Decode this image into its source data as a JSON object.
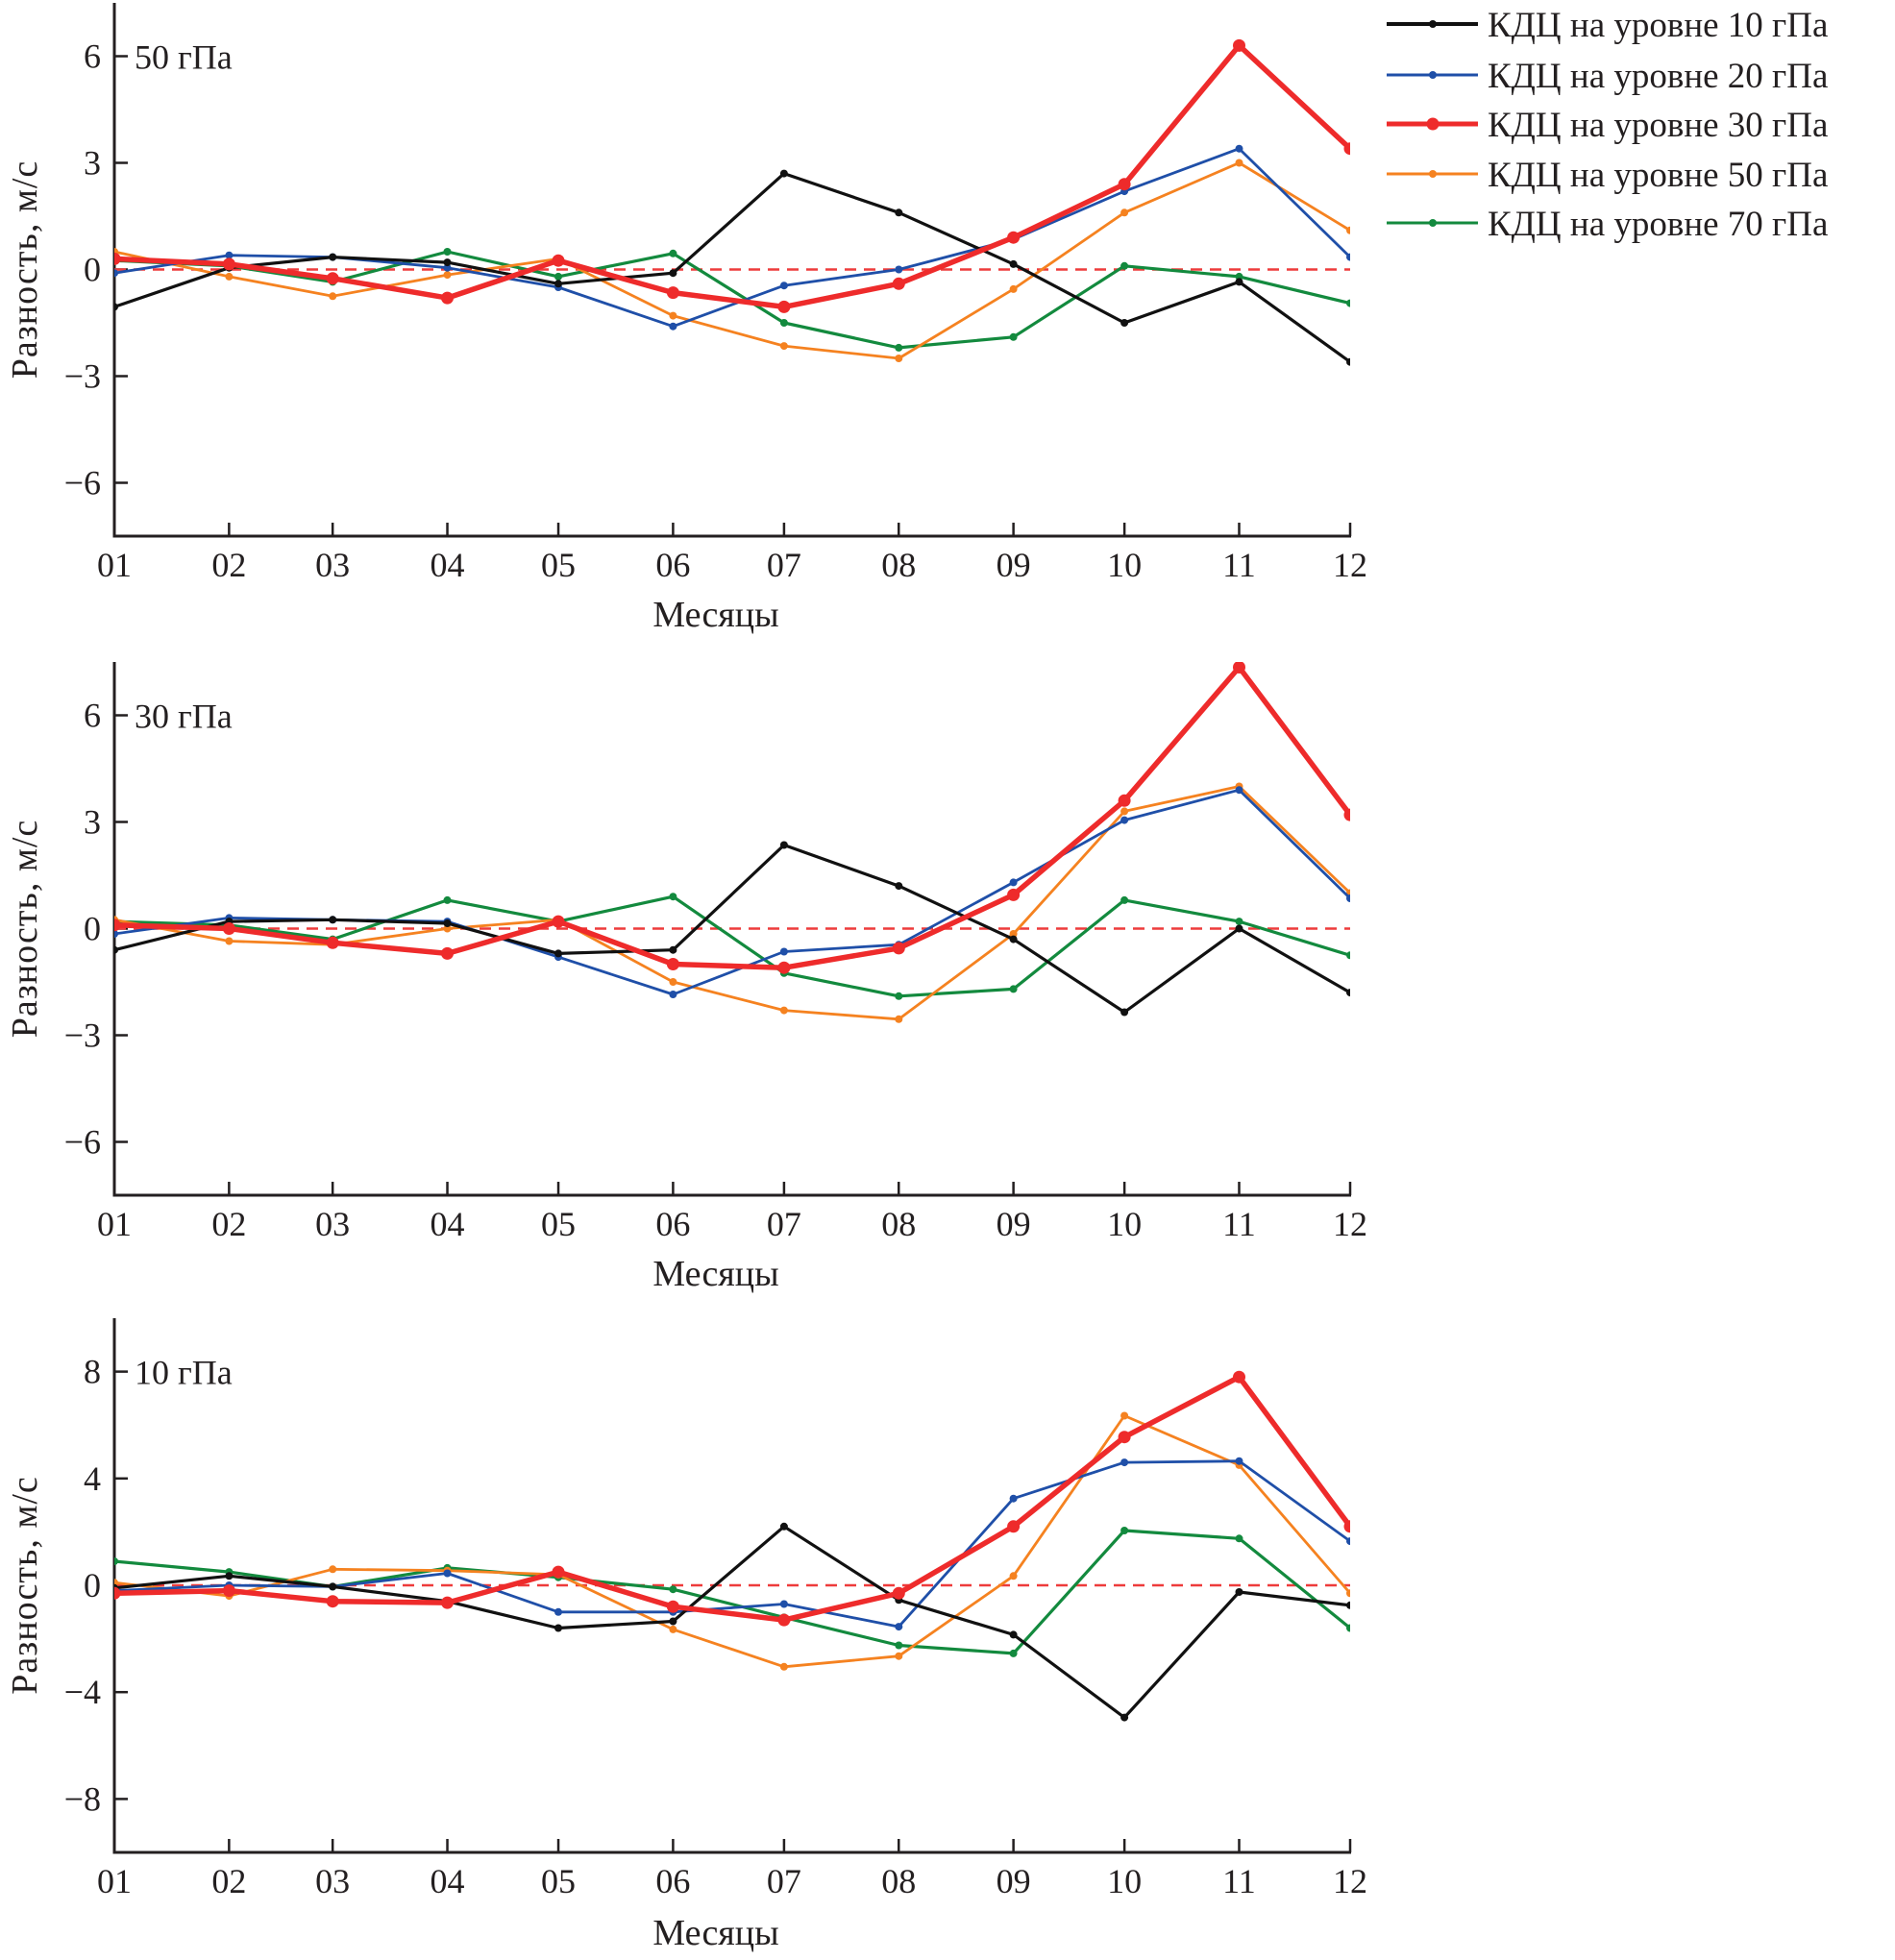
{
  "chart_data": {
    "type": "line",
    "x": [
      "01",
      "02",
      "03",
      "04",
      "05",
      "06",
      "07",
      "08",
      "09",
      "10",
      "11",
      "12"
    ],
    "x_day_offsets": [
      0,
      31,
      59,
      90,
      120,
      151,
      181,
      212,
      243,
      273,
      304,
      334
    ],
    "xlabel": "Месяцы",
    "ylabel": "Разность, м/с",
    "legend": {
      "placement": "top-right",
      "entries": [
        {
          "key": "s10",
          "label": "КДЦ на уровне 10 гПа",
          "color": "#111111"
        },
        {
          "key": "s20",
          "label": "КДЦ на уровне 20 гПа",
          "color": "#1f4fa8"
        },
        {
          "key": "s30",
          "label": "КДЦ на уровне 30 гПа",
          "color": "#ee2b2b"
        },
        {
          "key": "s50",
          "label": "КДЦ на уровне 50 гПа",
          "color": "#f58220"
        },
        {
          "key": "s70",
          "label": "КДЦ на уровне 70 гПа",
          "color": "#138a3e"
        }
      ]
    },
    "reference_line": {
      "y": 0,
      "style": "dashed",
      "color": "#ee3b3b"
    },
    "panels": [
      {
        "title": "50 гПа",
        "ylim": [
          -7.5,
          7.5
        ],
        "yticks": [
          -6,
          -3,
          0,
          3,
          6
        ],
        "ytick_labels": [
          "−6",
          "−3",
          "0",
          "3",
          "6"
        ],
        "series": [
          {
            "key": "s10",
            "name": "КДЦ на уровне 10 гПа",
            "values": [
              -1.05,
              0.05,
              0.35,
              0.2,
              -0.4,
              -0.1,
              2.7,
              1.6,
              0.15,
              -1.5,
              -0.35,
              -2.6
            ]
          },
          {
            "key": "s20",
            "name": "КДЦ на уровне 20 гПа",
            "values": [
              -0.1,
              0.4,
              0.35,
              0.05,
              -0.5,
              -1.6,
              -0.45,
              0.0,
              0.85,
              2.2,
              3.4,
              0.35
            ]
          },
          {
            "key": "s30",
            "name": "КДЦ на уровне 30 гПа",
            "values": [
              0.3,
              0.15,
              -0.25,
              -0.8,
              0.25,
              -0.65,
              -1.05,
              -0.4,
              0.9,
              2.4,
              6.3,
              3.4
            ]
          },
          {
            "key": "s50",
            "name": "КДЦ на уровне 50 гПа",
            "values": [
              0.5,
              -0.2,
              -0.75,
              -0.15,
              0.3,
              -1.3,
              -2.15,
              -2.5,
              -0.55,
              1.6,
              3.0,
              1.1
            ]
          },
          {
            "key": "s70",
            "name": "КДЦ на уровне 70 гПа",
            "values": [
              0.25,
              0.1,
              -0.35,
              0.5,
              -0.2,
              0.45,
              -1.5,
              -2.2,
              -1.9,
              0.1,
              -0.2,
              -0.95
            ]
          }
        ]
      },
      {
        "title": "30 гПа",
        "ylim": [
          -7.5,
          7.5
        ],
        "yticks": [
          -6,
          -3,
          0,
          3,
          6
        ],
        "ytick_labels": [
          "−6",
          "−3",
          "0",
          "3",
          "6"
        ],
        "series": [
          {
            "key": "s10",
            "name": "КДЦ на уровне 10 гПа",
            "values": [
              -0.6,
              0.2,
              0.25,
              0.15,
              -0.7,
              -0.6,
              2.35,
              1.2,
              -0.3,
              -2.35,
              0.0,
              -1.8
            ]
          },
          {
            "key": "s20",
            "name": "КДЦ на уровне 20 гПа",
            "values": [
              -0.15,
              0.3,
              0.25,
              0.2,
              -0.8,
              -1.85,
              -0.65,
              -0.45,
              1.3,
              3.05,
              3.9,
              0.85
            ]
          },
          {
            "key": "s30",
            "name": "КДЦ на уровне 30 гПа",
            "values": [
              0.1,
              0.0,
              -0.4,
              -0.7,
              0.2,
              -1.0,
              -1.1,
              -0.55,
              0.95,
              3.6,
              7.35,
              3.2
            ]
          },
          {
            "key": "s50",
            "name": "КДЦ на уровне 50 гПа",
            "values": [
              0.25,
              -0.35,
              -0.45,
              0.0,
              0.25,
              -1.5,
              -2.3,
              -2.55,
              -0.15,
              3.3,
              4.0,
              1.0
            ]
          },
          {
            "key": "s70",
            "name": "КДЦ на уровне 70 гПа",
            "values": [
              0.2,
              0.1,
              -0.3,
              0.8,
              0.2,
              0.9,
              -1.25,
              -1.9,
              -1.7,
              0.8,
              0.2,
              -0.75
            ]
          }
        ]
      },
      {
        "title": "10 гПа",
        "ylim": [
          -10,
          10
        ],
        "yticks": [
          -8,
          -4,
          0,
          4,
          8
        ],
        "ytick_labels": [
          "−8",
          "−4",
          "0",
          "4",
          "8"
        ],
        "series": [
          {
            "key": "s10",
            "name": "КДЦ на уровне 10 гПа",
            "values": [
              -0.1,
              0.35,
              -0.05,
              -0.6,
              -1.6,
              -1.35,
              2.2,
              -0.55,
              -1.85,
              -4.95,
              -0.25,
              -0.75
            ]
          },
          {
            "key": "s20",
            "name": "КДЦ на уровне 20 гПа",
            "values": [
              -0.2,
              0.0,
              -0.05,
              0.45,
              -1.0,
              -1.0,
              -0.7,
              -1.55,
              3.25,
              4.6,
              4.65,
              1.65
            ]
          },
          {
            "key": "s30",
            "name": "КДЦ на уровне 30 гПа",
            "values": [
              -0.3,
              -0.2,
              -0.6,
              -0.65,
              0.5,
              -0.8,
              -1.3,
              -0.3,
              2.2,
              5.55,
              7.8,
              2.2
            ]
          },
          {
            "key": "s50",
            "name": "КДЦ на уровне 50 гПа",
            "values": [
              0.1,
              -0.4,
              0.6,
              0.55,
              0.4,
              -1.65,
              -3.05,
              -2.65,
              0.35,
              6.35,
              4.5,
              -0.3
            ]
          },
          {
            "key": "s70",
            "name": "КДЦ на уровне 70 гПа",
            "values": [
              0.9,
              0.5,
              -0.05,
              0.65,
              0.3,
              -0.15,
              -1.2,
              -2.25,
              -2.55,
              2.05,
              1.75,
              -1.6
            ]
          }
        ]
      }
    ]
  }
}
